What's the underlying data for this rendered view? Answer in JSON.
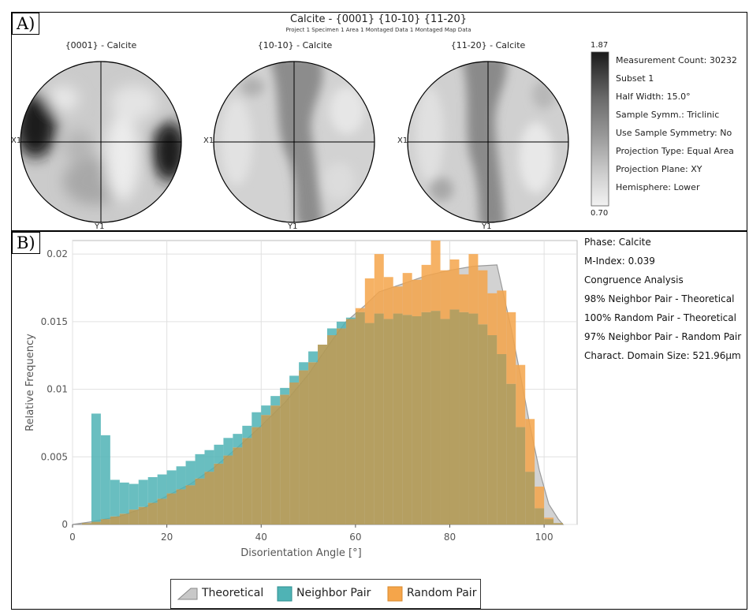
{
  "panel_a": {
    "label": "A)",
    "title": "Calcite - {0001} {10-10} {11-20}",
    "subtitle": "Project 1 Specimen 1 Area 1 Montaged Data 1 Montaged Map Data",
    "pole_figures": [
      {
        "title": "{0001} - Calcite",
        "x_label": "X1",
        "y_label": "Y1"
      },
      {
        "title": "{10-10} - Calcite",
        "x_label": "X1",
        "y_label": "Y1"
      },
      {
        "title": "{11-20} - Calcite",
        "x_label": "X1",
        "y_label": "Y1"
      }
    ],
    "colorbar": {
      "max": "1.87",
      "min": "0.70"
    },
    "info": [
      "Measurement Count: 30232",
      "Subset 1",
      "Half Width: 15.0°",
      "Sample Symm.: Triclinic",
      "Use Sample Symmetry: No",
      "Projection Type: Equal Area",
      "Projection Plane: XY",
      "Hemisphere: Lower"
    ]
  },
  "panel_b": {
    "label": "B)",
    "annotations": [
      "Phase: Calcite",
      "M-Index: 0.039",
      "Congruence Analysis",
      "98% Neighbor Pair - Theoretical",
      "100% Random Pair - Theoretical",
      "97% Neighbor Pair  - Random Pair",
      "Charact. Domain Size: 521.96µm"
    ],
    "legend": [
      {
        "label": "Theoretical",
        "color": "#c8c8c8"
      },
      {
        "label": "Neighbor Pair",
        "color": "#4fb3b5"
      },
      {
        "label": "Random Pair",
        "color": "#f5a54a"
      }
    ]
  },
  "colors": {
    "neighbor": "#4fb3b5",
    "random": "#f5a54a",
    "overlap": "#b29a57",
    "theoretical": "#d2d2d2"
  },
  "chart_data": {
    "type": "bar",
    "xlabel": "Disorientation Angle [°]",
    "ylabel": "Relative Frequency",
    "xlim": [
      0,
      107
    ],
    "ylim": [
      0,
      0.021
    ],
    "xticks": [
      0,
      20,
      40,
      60,
      80,
      100
    ],
    "yticks": [
      0,
      0.005,
      0.01,
      0.015,
      0.02
    ],
    "ytick_labels": [
      "0",
      "0.005",
      "0.01",
      "0.015",
      "0.02"
    ],
    "bin_width": 2,
    "grid": true,
    "series": [
      {
        "name": "Neighbor Pair",
        "x": [
          3,
          5,
          7,
          9,
          11,
          13,
          15,
          17,
          19,
          21,
          23,
          25,
          27,
          29,
          31,
          33,
          35,
          37,
          39,
          41,
          43,
          45,
          47,
          49,
          51,
          53,
          55,
          57,
          59,
          61,
          63,
          65,
          67,
          69,
          71,
          73,
          75,
          77,
          79,
          81,
          83,
          85,
          87,
          89,
          91,
          93,
          95,
          97,
          99,
          101,
          103
        ],
        "values": [
          0.0001,
          0.0082,
          0.0066,
          0.0033,
          0.0031,
          0.003,
          0.0033,
          0.0035,
          0.0037,
          0.004,
          0.0043,
          0.0047,
          0.0052,
          0.0055,
          0.0059,
          0.0064,
          0.0067,
          0.0073,
          0.0083,
          0.0088,
          0.0095,
          0.0101,
          0.011,
          0.012,
          0.0128,
          0.0133,
          0.0145,
          0.015,
          0.0153,
          0.0157,
          0.0149,
          0.0156,
          0.0152,
          0.0156,
          0.0155,
          0.0154,
          0.0157,
          0.0158,
          0.0152,
          0.0159,
          0.0157,
          0.0156,
          0.0148,
          0.014,
          0.0126,
          0.0104,
          0.0072,
          0.0039,
          0.0012,
          0.0004,
          0.0001
        ]
      },
      {
        "name": "Random Pair",
        "x": [
          3,
          5,
          7,
          9,
          11,
          13,
          15,
          17,
          19,
          21,
          23,
          25,
          27,
          29,
          31,
          33,
          35,
          37,
          39,
          41,
          43,
          45,
          47,
          49,
          51,
          53,
          55,
          57,
          59,
          61,
          63,
          65,
          67,
          69,
          71,
          73,
          75,
          77,
          79,
          81,
          83,
          85,
          87,
          89,
          91,
          93,
          95,
          97,
          99,
          101,
          103
        ],
        "values": [
          0.0001,
          0.0002,
          0.0004,
          0.0006,
          0.0008,
          0.0011,
          0.0013,
          0.0016,
          0.0019,
          0.0023,
          0.0026,
          0.0029,
          0.0034,
          0.0039,
          0.0045,
          0.0051,
          0.0057,
          0.0064,
          0.0072,
          0.0081,
          0.0088,
          0.0096,
          0.0105,
          0.0114,
          0.012,
          0.0133,
          0.014,
          0.0145,
          0.0152,
          0.016,
          0.0182,
          0.02,
          0.0183,
          0.0176,
          0.0186,
          0.0181,
          0.0192,
          0.021,
          0.0188,
          0.0196,
          0.0185,
          0.02,
          0.0188,
          0.0171,
          0.0173,
          0.0157,
          0.0118,
          0.0078,
          0.0028,
          0.0005,
          0.0001
        ]
      },
      {
        "name": "Theoretical",
        "x": [
          0,
          4,
          10,
          15,
          20,
          25,
          30,
          35,
          40,
          45,
          50,
          55,
          58,
          62,
          65,
          70,
          75,
          80,
          85,
          90,
          93,
          95,
          97,
          99,
          101,
          103,
          104
        ],
        "values": [
          0,
          0.0002,
          0.0006,
          0.0012,
          0.0021,
          0.003,
          0.0042,
          0.0057,
          0.0073,
          0.009,
          0.0111,
          0.0136,
          0.015,
          0.0162,
          0.0172,
          0.0178,
          0.0184,
          0.0188,
          0.0191,
          0.0192,
          0.0145,
          0.011,
          0.0073,
          0.004,
          0.0015,
          0.0004,
          0
        ]
      }
    ]
  }
}
